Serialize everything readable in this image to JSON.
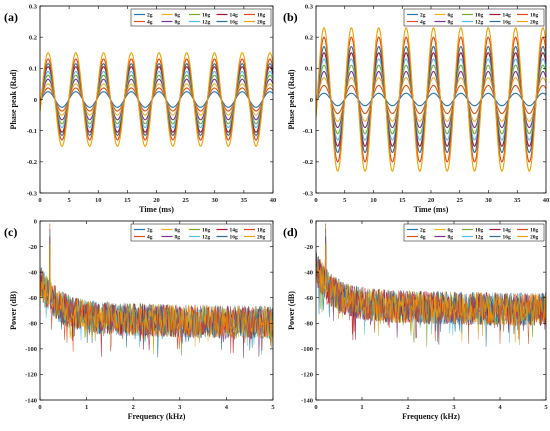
{
  "panels": [
    {
      "label": "(a)",
      "chart_data": {
        "type": "line",
        "xlabel": "Time (ms)",
        "ylabel": "Phase peak (Rad)",
        "xlim": [
          0,
          40
        ],
        "ylim": [
          -0.3,
          0.3
        ],
        "xticks": [
          "0",
          "5",
          "10",
          "15",
          "20",
          "25",
          "30",
          "35",
          "40"
        ],
        "yticks": [
          "-0.3",
          "-0.2",
          "-0.1",
          "0",
          "0.1",
          "0.2",
          "0.3"
        ],
        "signal_period_ms": 4.76,
        "legend_position": "top-right",
        "series": [
          {
            "name": "2g",
            "amplitude": 0.025
          },
          {
            "name": "4g",
            "amplitude": 0.037
          },
          {
            "name": "6g",
            "amplitude": 0.05
          },
          {
            "name": "8g",
            "amplitude": 0.065
          },
          {
            "name": "10g",
            "amplitude": 0.078
          },
          {
            "name": "12g",
            "amplitude": 0.09
          },
          {
            "name": "14g",
            "amplitude": 0.105
          },
          {
            "name": "16g",
            "amplitude": 0.115
          },
          {
            "name": "18g",
            "amplitude": 0.13
          },
          {
            "name": "20g",
            "amplitude": 0.15
          }
        ]
      }
    },
    {
      "label": "(b)",
      "chart_data": {
        "type": "line",
        "xlabel": "Time (ms)",
        "ylabel": "Phase peak (Rad)",
        "xlim": [
          0,
          40
        ],
        "ylim": [
          -0.3,
          0.3
        ],
        "xticks": [
          "0",
          "5",
          "10",
          "15",
          "20",
          "25",
          "30",
          "35",
          "40"
        ],
        "yticks": [
          "-0.3",
          "-0.2",
          "-0.1",
          "0",
          "0.1",
          "0.2",
          "0.3"
        ],
        "signal_period_ms": 4.76,
        "legend_position": "top-right",
        "series": [
          {
            "name": "2g",
            "amplitude": 0.02
          },
          {
            "name": "4g",
            "amplitude": 0.045
          },
          {
            "name": "6g",
            "amplitude": 0.07
          },
          {
            "name": "8g",
            "amplitude": 0.09
          },
          {
            "name": "10g",
            "amplitude": 0.11
          },
          {
            "name": "12g",
            "amplitude": 0.13
          },
          {
            "name": "14g",
            "amplitude": 0.15
          },
          {
            "name": "16g",
            "amplitude": 0.17
          },
          {
            "name": "18g",
            "amplitude": 0.2
          },
          {
            "name": "20g",
            "amplitude": 0.23
          }
        ]
      }
    },
    {
      "label": "(c)",
      "chart_data": {
        "type": "line",
        "xlabel": "Frequency (kHz)",
        "ylabel": "Power (dB)",
        "xlim": [
          0,
          5
        ],
        "ylim": [
          -140,
          0
        ],
        "xticks": [
          "0",
          "1",
          "2",
          "3",
          "4",
          "5"
        ],
        "yticks": [
          "-140",
          "-120",
          "-100",
          "-80",
          "-60",
          "-40",
          "-20",
          "0"
        ],
        "legend_position": "top-right",
        "noise_floor_db": -80,
        "peak_frequency_khz": 0.21,
        "peak_power_db": 0,
        "series": [
          {
            "name": "2g"
          },
          {
            "name": "4g"
          },
          {
            "name": "6g"
          },
          {
            "name": "8g"
          },
          {
            "name": "10g"
          },
          {
            "name": "12g"
          },
          {
            "name": "14g"
          },
          {
            "name": "16g"
          },
          {
            "name": "18g"
          },
          {
            "name": "20g"
          }
        ]
      }
    },
    {
      "label": "(d)",
      "chart_data": {
        "type": "line",
        "xlabel": "Frequency (kHz)",
        "ylabel": "Power (dB)",
        "xlim": [
          0,
          5
        ],
        "ylim": [
          -140,
          0
        ],
        "xticks": [
          "0",
          "1",
          "2",
          "3",
          "4",
          "5"
        ],
        "yticks": [
          "-140",
          "-120",
          "-100",
          "-80",
          "-60",
          "-40",
          "-20",
          "0"
        ],
        "legend_position": "top-right",
        "noise_floor_db": -70,
        "peak_frequency_khz": 0.21,
        "peak_power_db": 0,
        "series": [
          {
            "name": "2g"
          },
          {
            "name": "4g"
          },
          {
            "name": "6g"
          },
          {
            "name": "8g"
          },
          {
            "name": "10g"
          },
          {
            "name": "12g"
          },
          {
            "name": "14g"
          },
          {
            "name": "16g"
          },
          {
            "name": "18g"
          },
          {
            "name": "20g"
          }
        ]
      }
    }
  ],
  "series_colors": {
    "2g": "#1f77b4",
    "4g": "#d95319",
    "6g": "#edb120",
    "8g": "#7e2f8e",
    "10g": "#77ac30",
    "12g": "#4dbeee",
    "14g": "#a2142f",
    "16g": "#2a6f97",
    "18g": "#e0451f",
    "20g": "#f0a000"
  }
}
